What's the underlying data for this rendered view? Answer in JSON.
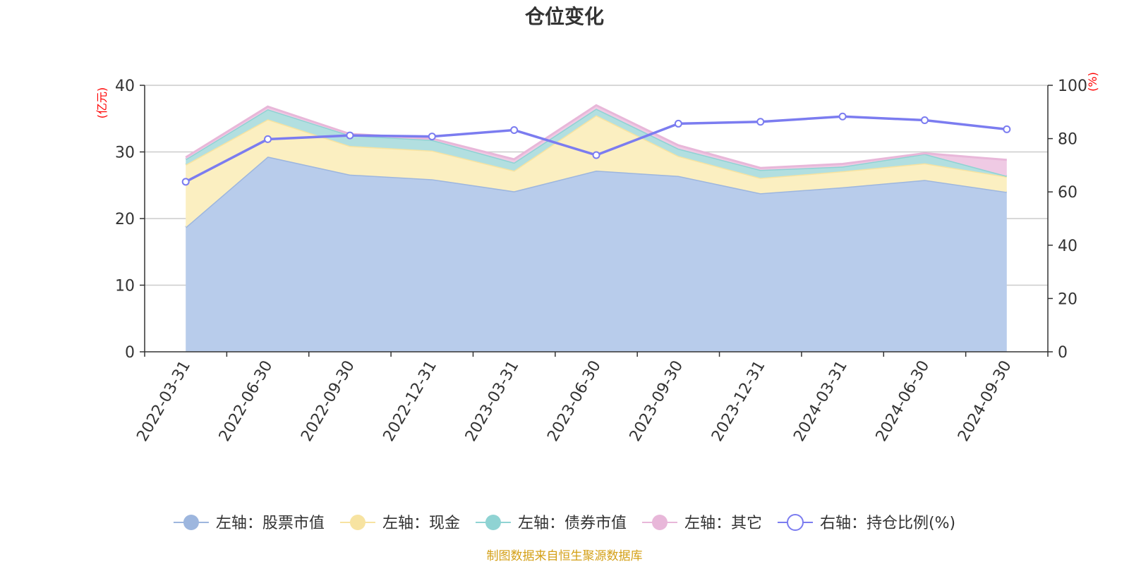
{
  "chart_data": {
    "type": "area",
    "title": "仓位变化",
    "left_unit": "(亿元)",
    "right_unit": "(%)",
    "categories": [
      "2022-03-31",
      "2022-06-30",
      "2022-09-30",
      "2022-12-31",
      "2023-03-31",
      "2023-06-30",
      "2023-09-30",
      "2023-12-31",
      "2024-03-31",
      "2024-06-30",
      "2024-09-30"
    ],
    "left_axis": {
      "min": 0,
      "max": 40,
      "ticks": [
        0,
        10,
        20,
        30,
        40
      ]
    },
    "right_axis": {
      "min": 0,
      "max": 100,
      "ticks": [
        0,
        20,
        40,
        60,
        80,
        100
      ]
    },
    "stacked_series": [
      {
        "name": "左轴：股票市值",
        "color": "#9db6de",
        "fill": "#b8cceb",
        "values": [
          18.7,
          29.3,
          26.6,
          25.9,
          24.1,
          27.2,
          26.4,
          23.8,
          24.7,
          25.8,
          24.0
        ]
      },
      {
        "name": "左轴：现金",
        "color": "#f7e3a1",
        "fill": "#fbefc1",
        "values": [
          9.4,
          5.6,
          4.3,
          4.3,
          3.1,
          8.3,
          3.0,
          2.3,
          2.4,
          2.5,
          2.3
        ]
      },
      {
        "name": "左轴：债券市值",
        "color": "#8fd3d3",
        "fill": "#b2dfe0",
        "values": [
          0.8,
          1.5,
          1.6,
          1.6,
          1.2,
          1.0,
          1.1,
          1.2,
          0.7,
          1.4,
          0.1
        ]
      },
      {
        "name": "左轴：其它",
        "color": "#e8b7d9",
        "fill": "#efcae4",
        "values": [
          0.3,
          0.4,
          0.2,
          0.2,
          0.5,
          0.5,
          0.5,
          0.3,
          0.4,
          0.1,
          2.4
        ]
      }
    ],
    "line_series": {
      "name": "右轴：持仓比例(%)",
      "color": "#7b7cf0",
      "values": [
        63.8,
        79.8,
        81.2,
        80.8,
        83.2,
        73.8,
        85.6,
        86.3,
        88.3,
        86.9,
        83.5
      ]
    },
    "grid": true,
    "legend_position": "bottom-center"
  },
  "source_note": "制图数据来自恒生聚源数据库"
}
